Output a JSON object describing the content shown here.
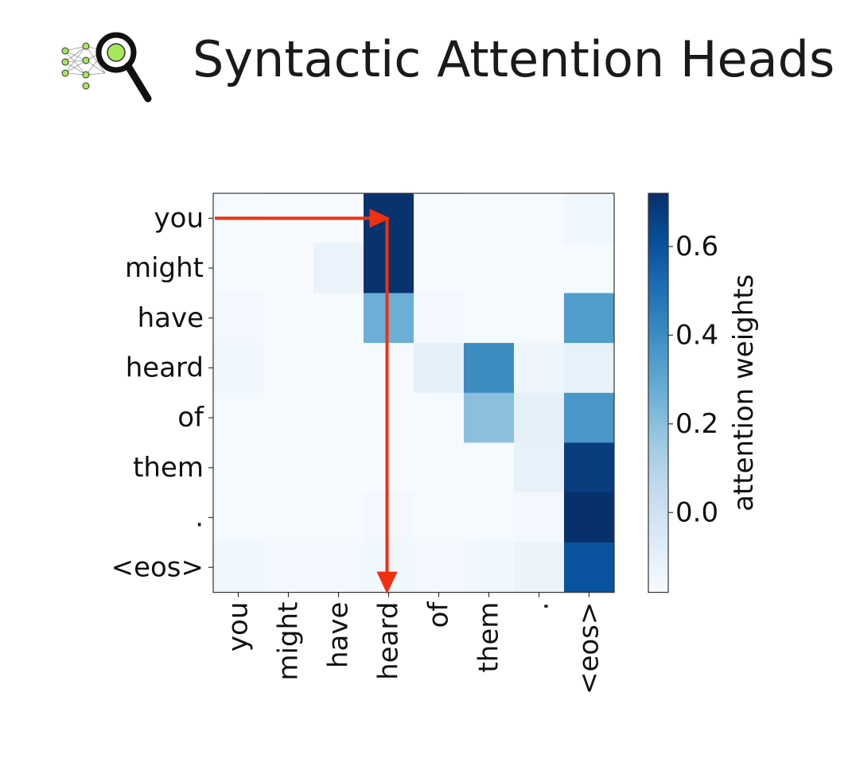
{
  "header": {
    "title": "Syntactic Attention Heads",
    "logo_icon": "neural-network-magnifier-icon"
  },
  "colors": {
    "arrow": "#f03010",
    "logo_green": "#a6e85a",
    "logo_outline": "#111111"
  },
  "chart_data": {
    "type": "heatmap",
    "rows": [
      "you",
      "might",
      "have",
      "heard",
      "of",
      "them",
      ".",
      "<eos>"
    ],
    "cols": [
      "you",
      "might",
      "have",
      "heard",
      "of",
      "them",
      ".",
      "<eos>"
    ],
    "values": [
      [
        -0.17,
        -0.18,
        -0.18,
        0.71,
        -0.18,
        -0.17,
        -0.17,
        -0.15
      ],
      [
        -0.18,
        -0.18,
        -0.12,
        0.71,
        -0.18,
        -0.18,
        -0.18,
        -0.17
      ],
      [
        -0.16,
        -0.18,
        -0.17,
        0.27,
        -0.16,
        -0.17,
        -0.17,
        0.34
      ],
      [
        -0.15,
        -0.18,
        -0.18,
        -0.17,
        -0.1,
        0.4,
        -0.14,
        -0.11
      ],
      [
        -0.17,
        -0.18,
        -0.18,
        -0.18,
        -0.17,
        0.2,
        -0.1,
        0.36
      ],
      [
        -0.18,
        -0.18,
        -0.18,
        -0.18,
        -0.17,
        -0.17,
        -0.11,
        0.68
      ],
      [
        -0.17,
        -0.17,
        -0.17,
        -0.16,
        -0.17,
        -0.17,
        -0.16,
        0.72
      ],
      [
        -0.15,
        -0.16,
        -0.16,
        -0.15,
        -0.16,
        -0.15,
        -0.13,
        0.6
      ]
    ],
    "colorbar": {
      "label": "attention weights",
      "ticks": [
        "0.0",
        "0.2",
        "0.4",
        "0.6"
      ],
      "tick_values": [
        0.0,
        0.2,
        0.4,
        0.6
      ],
      "range": [
        -0.18,
        0.72
      ],
      "colormap": "Blues"
    },
    "annotation": {
      "type": "arrow",
      "from_row": "you",
      "to_col": "heard"
    }
  }
}
